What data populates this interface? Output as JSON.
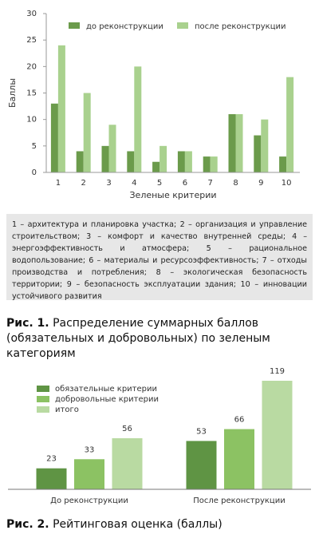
{
  "chart_data": [
    {
      "type": "bar",
      "y_label": "Баллы",
      "x_label": "Зеленые критерии",
      "categories": [
        "1",
        "2",
        "3",
        "4",
        "5",
        "6",
        "7",
        "8",
        "9",
        "10"
      ],
      "series": [
        {
          "name": "до реконструкции",
          "color": "#6b9b4b",
          "values": [
            13,
            4,
            5,
            4,
            2,
            4,
            3,
            11,
            7,
            3
          ]
        },
        {
          "name": "после реконструкции",
          "color": "#a9d18e",
          "values": [
            24,
            15,
            9,
            20,
            5,
            4,
            3,
            11,
            10,
            18
          ]
        }
      ],
      "ylim": [
        0,
        30
      ],
      "yticks": [
        0,
        5,
        10,
        15,
        20,
        25,
        30
      ],
      "note": "1 – архитектура и планировка участка; 2 – организация и управление строительством; 3 – комфорт и качество внутренней среды; 4 – энергоэффективность и атмосфера; 5 – рациональное водопользование; 6 – материалы и ресурсоэффективность; 7 – отходы производства и потребления; 8 – экологическая безопасность территории; 9 – безопасность эксплуатации здания; 10 – инновации устойчивого развития",
      "caption_label": "Рис. 1.",
      "caption": "Распределение суммарных баллов (обязательных и добровольных) по зеленым категориям"
    },
    {
      "type": "bar",
      "categories": [
        "До реконструкции",
        "После реконструкции"
      ],
      "series": [
        {
          "name": "обязательные критерии",
          "color": "#5f9444",
          "values": [
            23,
            53
          ]
        },
        {
          "name": "добровольные критерии",
          "color": "#8cc263",
          "values": [
            33,
            66
          ]
        },
        {
          "name": "итого",
          "color": "#b9daa2",
          "values": [
            56,
            119
          ]
        }
      ],
      "caption_label": "Рис. 2.",
      "caption": "Рейтинговая оценка (баллы)"
    }
  ]
}
